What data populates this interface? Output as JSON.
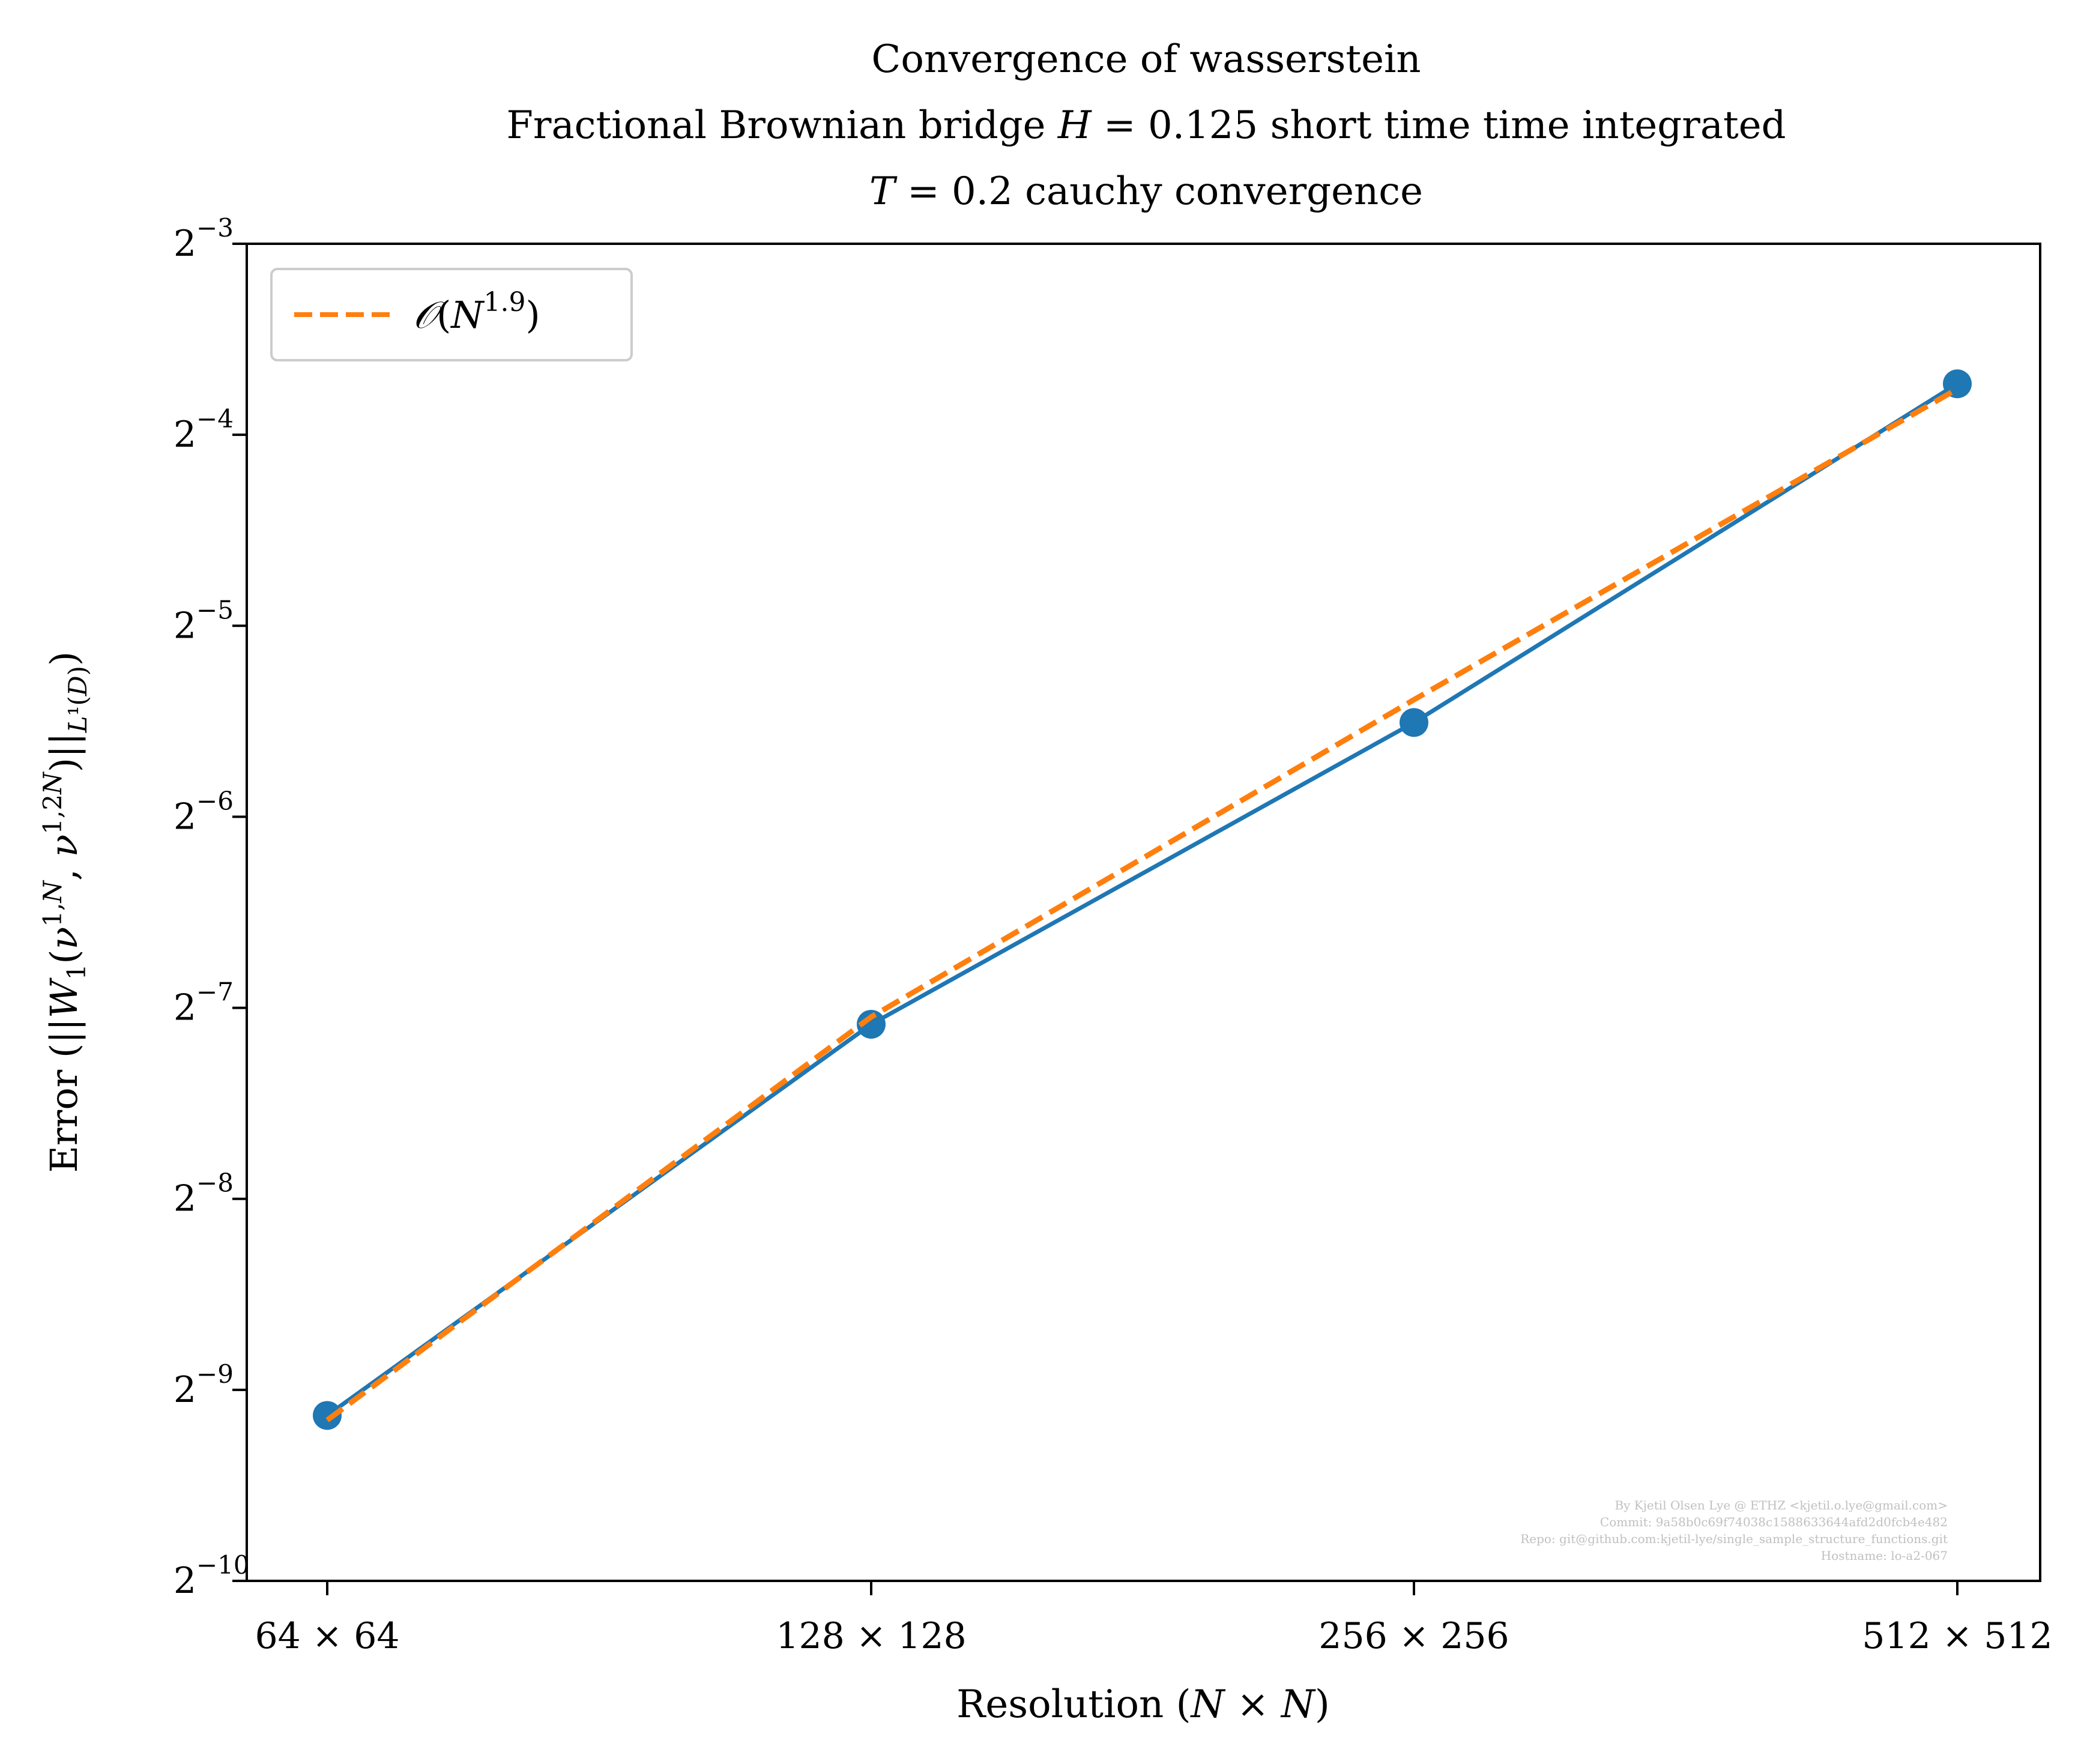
{
  "chart_data": {
    "type": "line",
    "title": [
      "Convergence of wasserstein",
      "Fractional Brownian bridge H = 0.125 short time time integrated",
      "T = 0.2 cauchy convergence"
    ],
    "xlabel": "Resolution (N × N)",
    "ylabel": "Error (||W₁(ν¹ᐧᴺ, ν¹ᐧ²ᴺ)||L¹(D))",
    "x_scale": "log2",
    "y_scale": "log2",
    "categories": [
      "64 × 64",
      "128 × 128",
      "256 × 256",
      "512 × 512"
    ],
    "x": [
      64,
      128,
      256,
      512
    ],
    "ylim_exp": [
      -10,
      -3
    ],
    "yticks": [
      {
        "base": "2",
        "exp": "−3",
        "e": -3
      },
      {
        "base": "2",
        "exp": "−4",
        "e": -4
      },
      {
        "base": "2",
        "exp": "−5",
        "e": -5
      },
      {
        "base": "2",
        "exp": "−6",
        "e": -6
      },
      {
        "base": "2",
        "exp": "−7",
        "e": -7
      },
      {
        "base": "2",
        "exp": "−8",
        "e": -8
      },
      {
        "base": "2",
        "exp": "−9",
        "e": -9
      },
      {
        "base": "2",
        "exp": "−10",
        "e": -10
      }
    ],
    "series": [
      {
        "values": [
          0.00178,
          0.00736,
          0.022,
          0.0752
        ],
        "color": "#1f77b4",
        "style": "solid",
        "marker": "circle"
      },
      {
        "name": "O(N^1.9)",
        "values": [
          0.00175,
          0.00756,
          0.0239,
          0.0738
        ],
        "color": "#ff7f0e",
        "style": "dashed",
        "marker": "none"
      }
    ],
    "legend": {
      "position": "top-left",
      "entries": [
        "O(N^1.9)"
      ]
    },
    "grid": false,
    "watermark": [
      "By Kjetil Olsen Lye @ ETHZ <kjetil.o.lye@gmail.com>",
      "Commit: 9a58b0c69f74038c1588633644afd2d0fcb4e482",
      "Repo: git@github.com:kjetil-lye/single_sample_structure_functions.git",
      "Hostname: lo-a2-067"
    ]
  }
}
